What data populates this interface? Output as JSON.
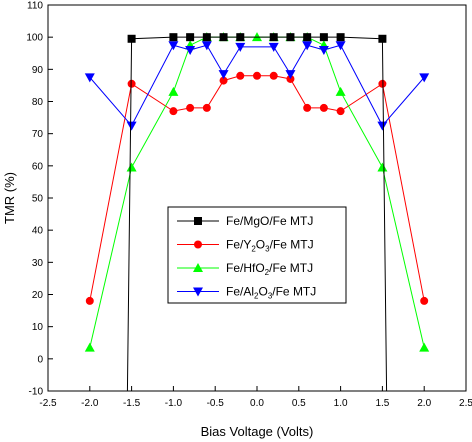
{
  "chart_data": {
    "type": "line",
    "title": "",
    "xlabel": "Bias Voltage (Volts)",
    "ylabel": "TMR (%)",
    "xlim": [
      -2.5,
      2.5
    ],
    "ylim": [
      -10,
      110
    ],
    "xticks": [
      "-2.5",
      "-2.0",
      "-1.5",
      "-1.0",
      "-0.5",
      "0.0",
      "0.5",
      "1.0",
      "1.5",
      "2.0",
      "2.5"
    ],
    "yticks": [
      "-10",
      "0",
      "10",
      "20",
      "30",
      "40",
      "50",
      "60",
      "70",
      "80",
      "90",
      "100",
      "110"
    ],
    "legend_position": "center-left",
    "series": [
      {
        "name": "Fe/MgO/Fe MTJ",
        "legend_parts": [
          "Fe/MgO/Fe MTJ"
        ],
        "color": "#000000",
        "marker": "square",
        "x": [
          -1.55,
          -1.5,
          -1.0,
          -0.8,
          -0.6,
          -0.4,
          -0.2,
          0.2,
          0.4,
          0.6,
          0.8,
          1.0,
          1.5,
          1.55
        ],
        "y": [
          -10,
          99.5,
          100,
          100,
          100,
          100,
          100,
          100,
          100,
          100,
          100,
          100,
          99.5,
          -10
        ],
        "marker_x": [
          -1.5,
          -1.0,
          -0.8,
          -0.6,
          -0.4,
          -0.2,
          0.2,
          0.4,
          0.6,
          0.8,
          1.0,
          1.5
        ],
        "marker_y": [
          99.5,
          100,
          100,
          100,
          100,
          100,
          100,
          100,
          100,
          100,
          100,
          99.5
        ]
      },
      {
        "name": "Fe/Y2O3/Fe MTJ",
        "legend_parts": [
          "Fe/Y",
          "2",
          "O",
          "3",
          "/Fe MTJ"
        ],
        "color": "#ff0000",
        "marker": "circle",
        "x": [
          -2.0,
          -1.5,
          -1.0,
          -0.8,
          -0.6,
          -0.4,
          -0.2,
          0.0,
          0.2,
          0.4,
          0.6,
          0.8,
          1.0,
          1.5,
          2.0
        ],
        "y": [
          18,
          85.5,
          77,
          78,
          78,
          86.5,
          88,
          88,
          88,
          87,
          78,
          78,
          77,
          85.5,
          18
        ]
      },
      {
        "name": "Fe/HfO2/Fe MTJ",
        "legend_parts": [
          "Fe/HfO",
          "2",
          "/Fe MTJ"
        ],
        "color": "#00ff00",
        "marker": "triangle-up",
        "x": [
          -2.0,
          -1.5,
          -1.0,
          -0.8,
          -0.6,
          -0.4,
          -0.2,
          0.0,
          0.2,
          0.4,
          0.6,
          0.8,
          1.0,
          1.5,
          2.0
        ],
        "y": [
          3.5,
          59.5,
          83,
          97.5,
          100,
          100,
          100,
          100,
          100,
          100,
          100,
          97.5,
          83,
          59.5,
          3.5
        ]
      },
      {
        "name": "Fe/Al2O3/Fe MTJ",
        "legend_parts": [
          "Fe/Al",
          "2",
          "O",
          "3",
          "/Fe MTJ"
        ],
        "color": "#0000ff",
        "marker": "triangle-down",
        "x": [
          -2.0,
          -1.5,
          -1.0,
          -0.8,
          -0.6,
          -0.4,
          -0.2,
          0.2,
          0.4,
          0.6,
          0.8,
          1.0,
          1.5,
          2.0
        ],
        "y": [
          87.5,
          72.5,
          97.5,
          96,
          97.5,
          88.5,
          97,
          97,
          88.5,
          97.5,
          96,
          97.5,
          72.5,
          87.5
        ]
      }
    ]
  }
}
